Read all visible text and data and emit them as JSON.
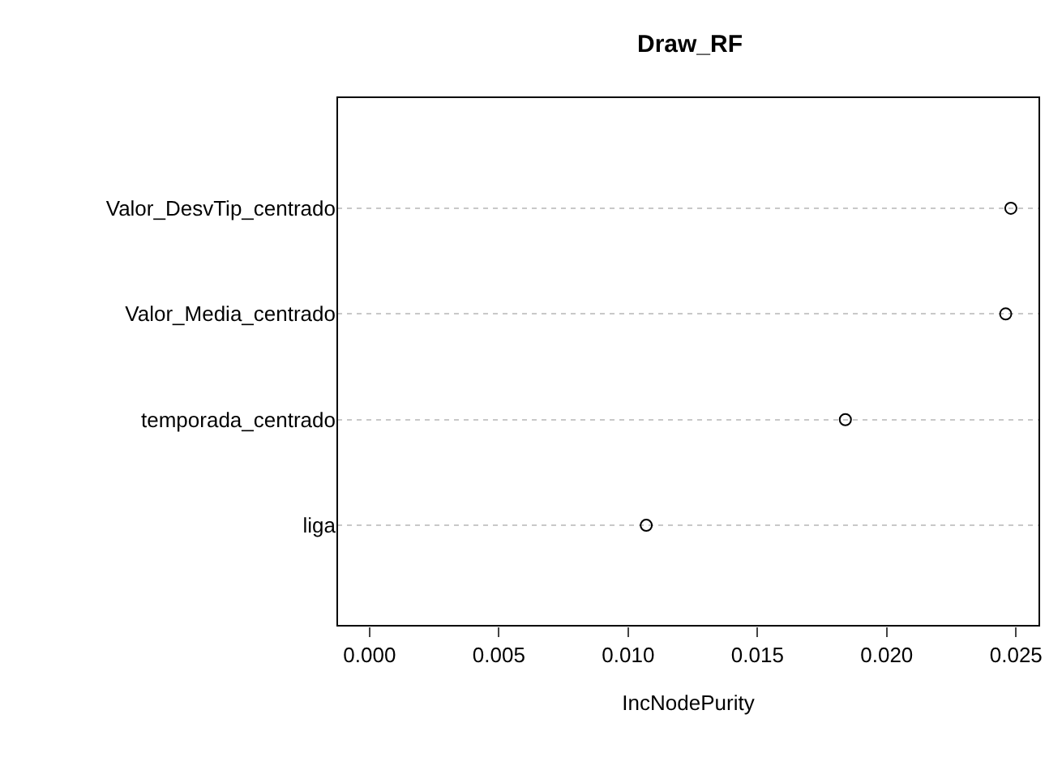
{
  "chart_data": {
    "type": "scatter",
    "orientation": "horizontal",
    "title": "Draw_RF",
    "xlabel": "IncNodePurity",
    "categories": [
      "Valor_DesvTip_centrado",
      "Valor_Media_centrado",
      "temporada_centrado",
      "liga"
    ],
    "series": [
      {
        "color": "#000000",
        "values": [
          0.0248,
          0.0246,
          0.0184,
          0.0107
        ]
      }
    ],
    "xlim": [
      -0.00125,
      0.0259
    ],
    "xticks": [
      {
        "value": 0,
        "label": "0.000"
      },
      {
        "value": 0.005,
        "label": "0.005"
      },
      {
        "value": 0.01,
        "label": "0.010"
      },
      {
        "value": 0.015,
        "label": "0.015"
      },
      {
        "value": 0.02,
        "label": "0.020"
      },
      {
        "value": 0.025,
        "label": "0.025"
      }
    ],
    "grid": "y",
    "line_style": "dotted",
    "marker": "circle"
  }
}
